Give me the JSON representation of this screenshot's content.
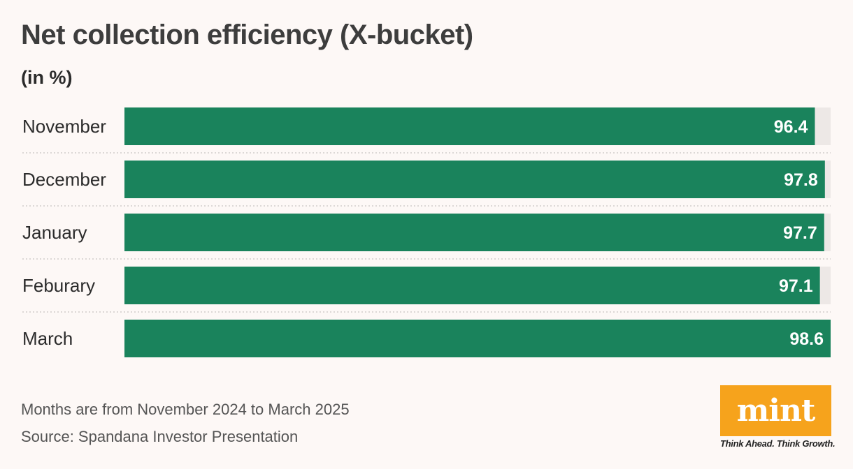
{
  "title": "Net collection efficiency (X-bucket)",
  "subtitle": "(in %)",
  "notes": {
    "period": "Months are from November 2024 to March 2025",
    "source": "Source: Spandana Investor Presentation"
  },
  "logo": {
    "name": "mint",
    "tagline": "Think Ahead. Think Growth."
  },
  "colors": {
    "bar": "#1a835c",
    "track": "#ede8e6",
    "background": "#fdf8f6",
    "logo": "#f6a31c"
  },
  "chart_data": {
    "type": "bar",
    "orientation": "horizontal",
    "categories": [
      "November",
      "December",
      "January",
      "Feburary",
      "March"
    ],
    "values": [
      96.4,
      97.8,
      97.7,
      97.1,
      98.6
    ],
    "title": "Net collection efficiency (X-bucket)",
    "ylabel": "(in %)",
    "xlim": [
      0,
      98.6
    ],
    "grid": false,
    "legend": "none"
  }
}
